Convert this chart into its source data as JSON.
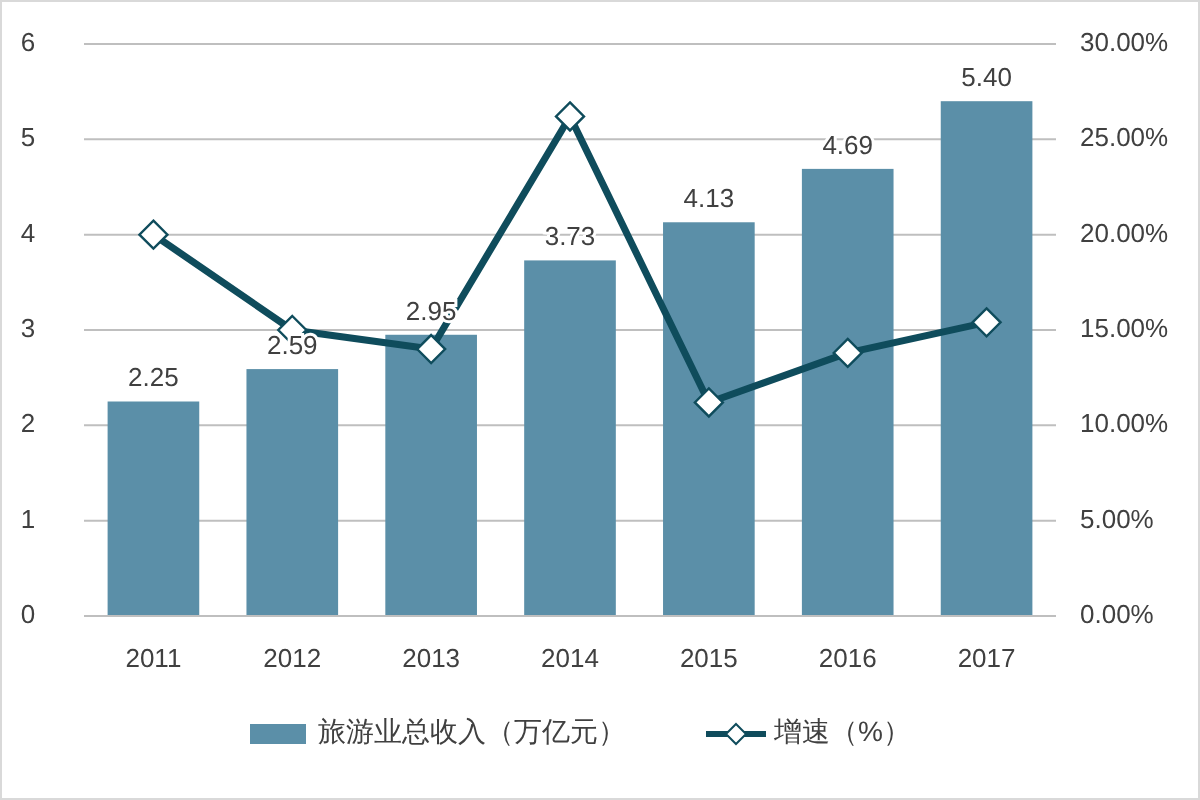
{
  "chart_data": {
    "type": "bar",
    "categories": [
      "2011",
      "2012",
      "2013",
      "2014",
      "2015",
      "2016",
      "2017"
    ],
    "series": [
      {
        "name": "旅游业总收入（万亿元）",
        "color": "#5b8fa8",
        "values": [
          2.25,
          2.59,
          2.95,
          3.73,
          4.13,
          4.69,
          5.4
        ],
        "value_labels": [
          "2.25",
          "2.59",
          "2.95",
          "3.73",
          "4.13",
          "4.69",
          "5.40"
        ]
      },
      {
        "name": "增速（%）",
        "type": "line",
        "axis": "y2",
        "color": "#0f4c5c",
        "marker": "diamond",
        "values": [
          20,
          15,
          14,
          26.2,
          11.2,
          13.8,
          15.4
        ]
      }
    ],
    "ylim": [
      0,
      6
    ],
    "yticks": [
      0,
      1,
      2,
      3,
      4,
      5,
      6
    ],
    "y2lim": [
      0,
      30
    ],
    "y2ticks": [
      {
        "value": 0,
        "label": "0.00%"
      },
      {
        "value": 5,
        "label": "5.00%"
      },
      {
        "value": 10,
        "label": "10.00%"
      },
      {
        "value": 15,
        "label": "15.00%"
      },
      {
        "value": 20,
        "label": "20.00%"
      },
      {
        "value": 25,
        "label": "25.00%"
      },
      {
        "value": 30,
        "label": "30.00%"
      }
    ],
    "grid": "y",
    "legend": "bottom"
  }
}
